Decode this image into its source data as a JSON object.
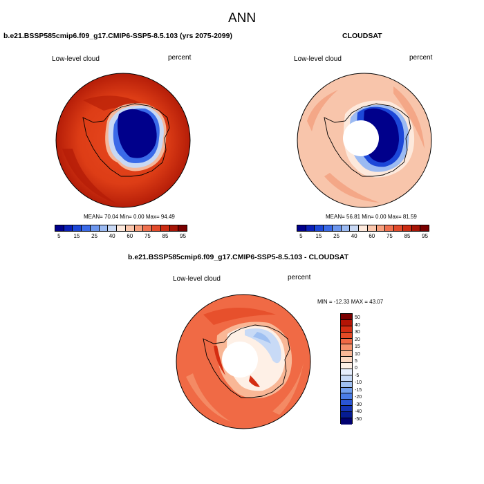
{
  "main_title": "ANN",
  "panel1": {
    "case_title": "b.e21.BSSP585cmip6.f09_g17.CMIP6-SSP5-8.5.103 (yrs 2075-2099)",
    "variable": "Low-level cloud",
    "units": "percent",
    "stats": "MEAN= 70.04  Min=  0.00  Max= 94.49"
  },
  "panel2": {
    "case_title": "CLOUDSAT",
    "variable": "Low-level cloud",
    "units": "percent",
    "stats": "MEAN= 56.81  Min=  0.00  Max= 81.59"
  },
  "panel3": {
    "case_title": "b.e21.BSSP585cmip6.f09_g17.CMIP6-SSP5-8.5.103 - CLOUDSAT",
    "variable": "Low-level cloud",
    "units": "percent",
    "stats": "MIN = -12.33 MAX =  43.07"
  },
  "colorbar_main": {
    "colors": [
      "#00008b",
      "#0a1fb8",
      "#1c47d8",
      "#3a6ae8",
      "#6c96ee",
      "#9bbaf2",
      "#c8d8f4",
      "#fde9dc",
      "#fbc7ad",
      "#f8a07e",
      "#f0704e",
      "#e24a2a",
      "#cc2c12",
      "#a61405",
      "#7a0000"
    ],
    "labels": [
      "5",
      "15",
      "25",
      "40",
      "60",
      "75",
      "85",
      "95"
    ]
  },
  "colorbar_diff": {
    "colors": [
      "#7a0000",
      "#b31405",
      "#d42d12",
      "#e54a25",
      "#f06a45",
      "#f5926c",
      "#f9b796",
      "#fcd8c2",
      "#fef0e6",
      "#e6eefc",
      "#c8daf6",
      "#9fc0f2",
      "#729fee",
      "#4a7ce6",
      "#2a55d4",
      "#1434b4",
      "#061c93",
      "#000070"
    ],
    "labels": [
      "50",
      "40",
      "30",
      "20",
      "15",
      "10",
      "5",
      "0",
      "-5",
      "-10",
      "-15",
      "-20",
      "-30",
      "-40",
      "-50"
    ]
  }
}
